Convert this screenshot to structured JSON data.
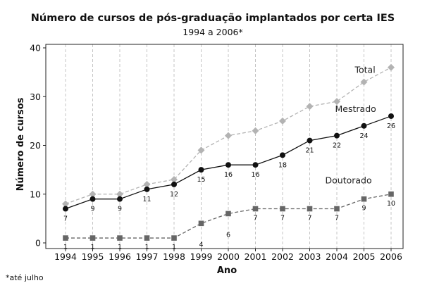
{
  "chart_data": {
    "type": "line",
    "title": "Número de cursos de pós-graduação implantados por certa IES",
    "subtitle": "1994 a  2006*",
    "xlabel": "Ano",
    "ylabel": "Número de cursos",
    "footnote": "*até julho",
    "ylim": [
      0,
      40
    ],
    "yticks": [
      "0",
      "10",
      "20",
      "30",
      "40"
    ],
    "grid": "vertical dashed",
    "x": [
      "1994",
      "1995",
      "1996",
      "1997",
      "1998",
      "1999",
      "2000",
      "2001",
      "2002",
      "2003",
      "2004",
      "2005",
      "2006"
    ],
    "series": [
      {
        "name": "Total",
        "values": [
          8,
          10,
          10,
          12,
          13,
          19,
          22,
          23,
          25,
          28,
          29,
          33,
          36
        ],
        "color": "#b3b3b3",
        "marker": "diamond",
        "dash": true,
        "labels": null
      },
      {
        "name": "Mestrado",
        "values": [
          7,
          9,
          9,
          11,
          12,
          15,
          16,
          16,
          18,
          21,
          22,
          24,
          26
        ],
        "color": "#111111",
        "marker": "circle",
        "dash": false,
        "labels": [
          "7",
          "9",
          "9",
          "11",
          "12",
          "15",
          "16",
          "16",
          "18",
          "21",
          "22",
          "24",
          "26"
        ]
      },
      {
        "name": "Doutorado",
        "values": [
          1,
          1,
          1,
          1,
          1,
          4,
          6,
          7,
          7,
          7,
          7,
          9,
          10
        ],
        "color": "#666666",
        "marker": "square",
        "dash": true,
        "labels": [
          "1",
          "1",
          "1",
          "1",
          "1",
          "4",
          "6",
          "7",
          "7",
          "7",
          "7",
          "9",
          "10"
        ]
      }
    ]
  }
}
